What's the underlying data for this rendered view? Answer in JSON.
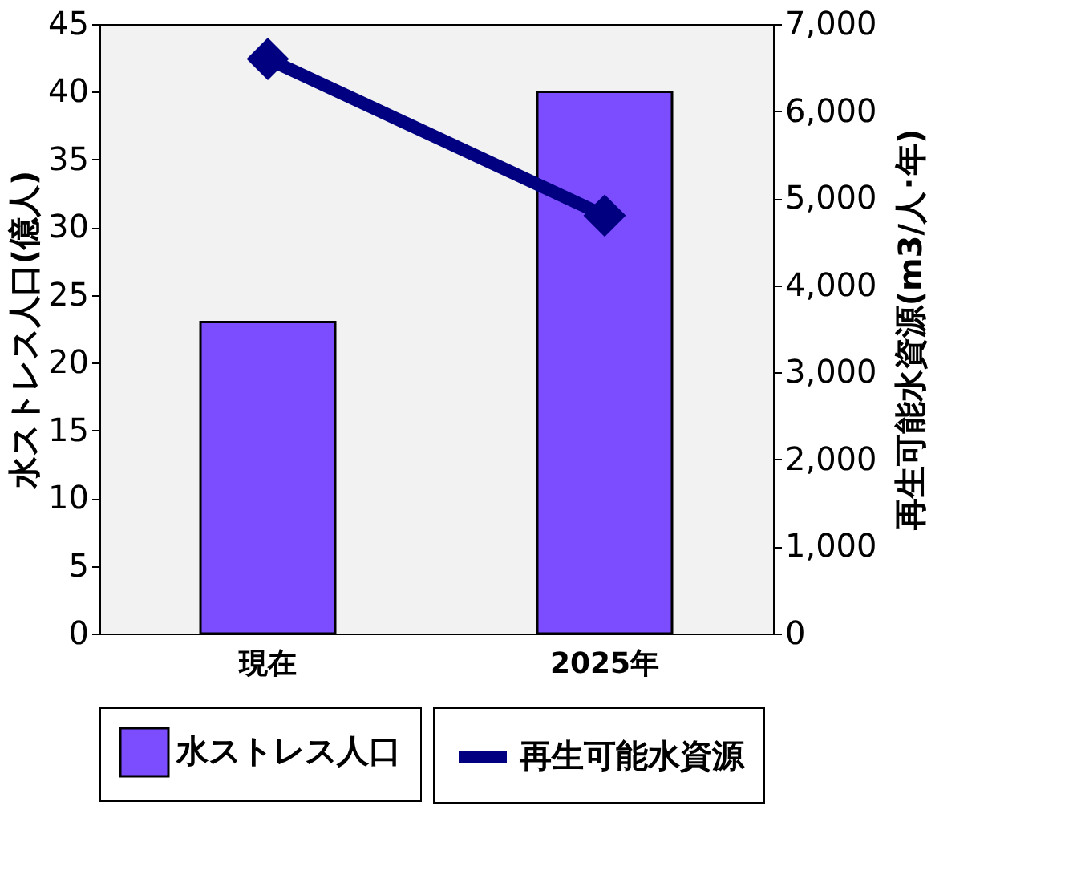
{
  "chart_data": {
    "type": "bar",
    "categories": [
      "現在",
      "2025年"
    ],
    "ylabel": "水ストレス人口(億人)",
    "y2label": "再生可能水資源(m3/人･年)",
    "ylim": [
      0,
      45
    ],
    "yticks": [
      0,
      5,
      10,
      15,
      20,
      25,
      30,
      35,
      40,
      45
    ],
    "y2lim": [
      0,
      7000
    ],
    "y2ticks": [
      {
        "value": 0,
        "label": "0"
      },
      {
        "value": 1000,
        "label": "1,000"
      },
      {
        "value": 2000,
        "label": "2,000"
      },
      {
        "value": 3000,
        "label": "3,000"
      },
      {
        "value": 4000,
        "label": "4,000"
      },
      {
        "value": 5000,
        "label": "5,000"
      },
      {
        "value": 6000,
        "label": "6,000"
      },
      {
        "value": 7000,
        "label": "7,000"
      }
    ],
    "series": [
      {
        "name": "水ストレス人口",
        "color": "#7b4dff",
        "values": [
          23,
          40
        ]
      },
      {
        "name": "再生可能水資源",
        "type": "line",
        "axis": "y2",
        "color": "#000080",
        "values": [
          6600,
          4800
        ]
      }
    ],
    "marker": "diamond",
    "grid": false,
    "legend": "bottom"
  }
}
